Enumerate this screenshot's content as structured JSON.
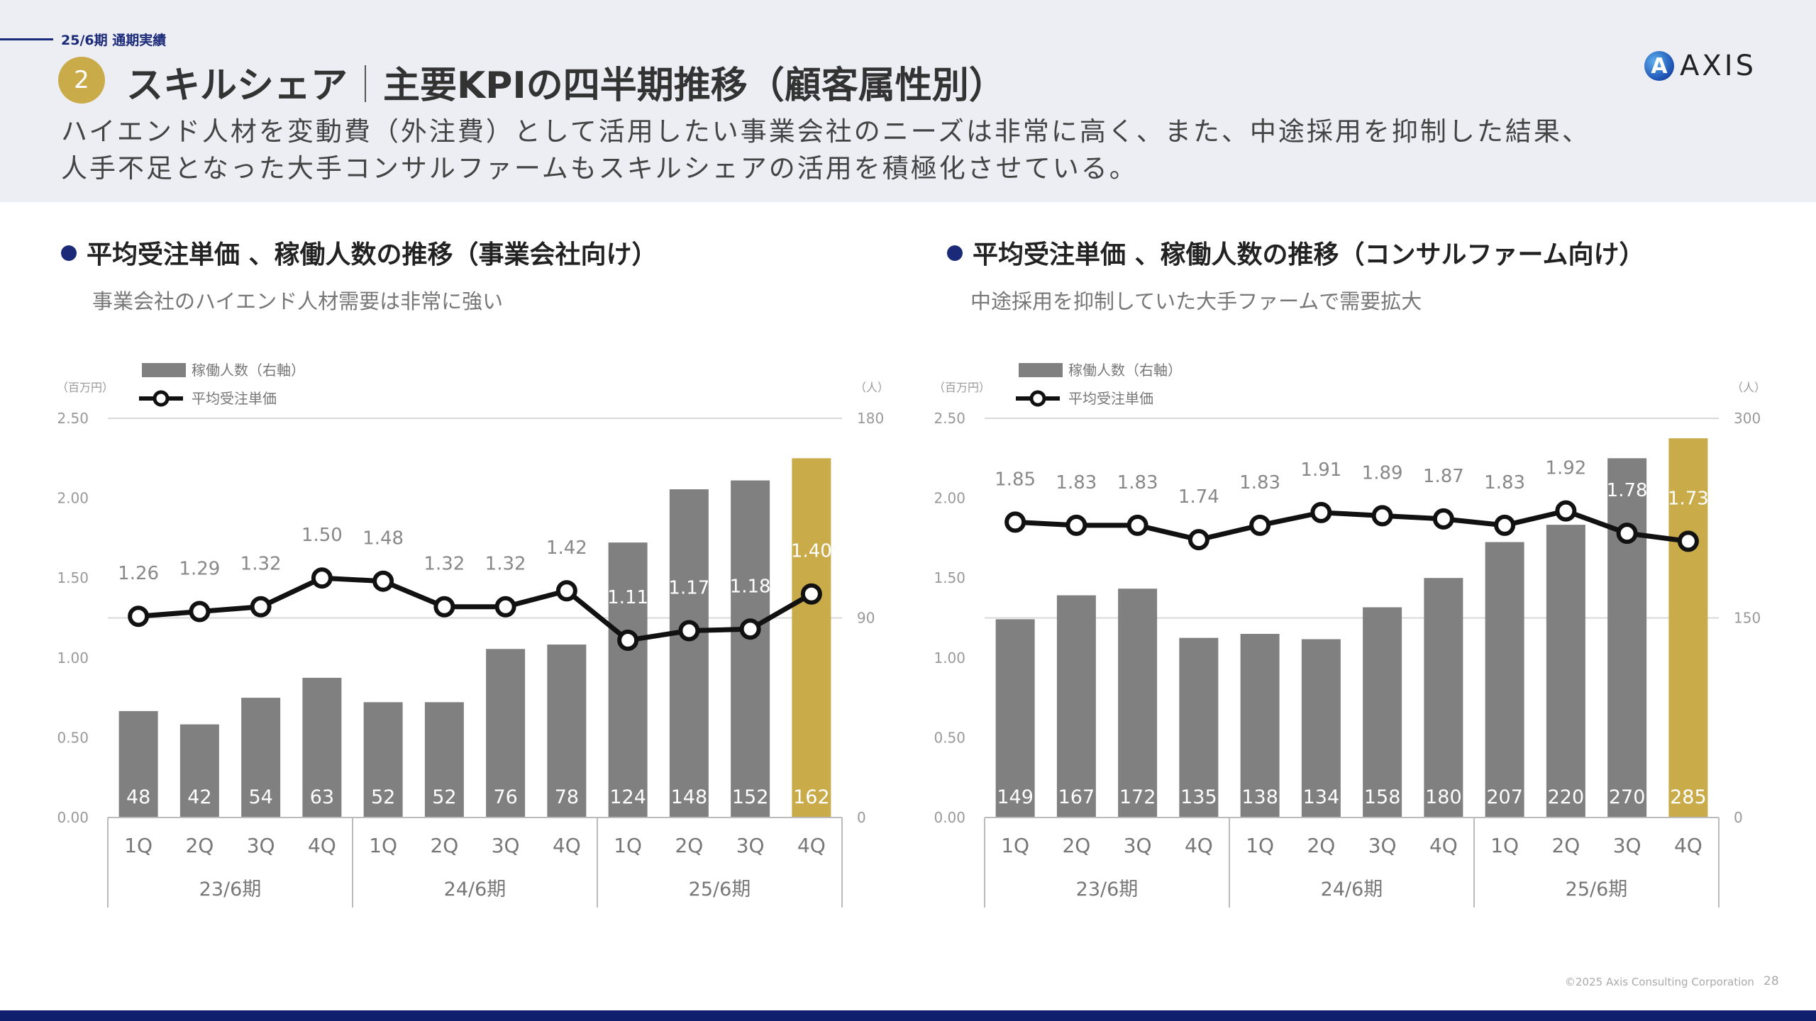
{
  "header": {
    "period_label": "25/6期 通期実績",
    "section_number": "2",
    "title_main": "スキルシェア",
    "title_sub": "主要KPIの四半期推移（顧客属性別）",
    "lead_line1": "ハイエンド人材を変動費（外注費）として活用したい事業会社のニーズは非常に高く、また、中途採用を抑制した結果、",
    "lead_line2": "人手不足となった大手コンサルファームもスキルシェアの活用を積極化させている。",
    "logo_text": "AXIS"
  },
  "sections": [
    {
      "heading": "平均受注単価 、稼働人数の推移（事業会社向け）",
      "note": "事業会社のハイエンド人材需要は非常に強い"
    },
    {
      "heading": "平均受注単価 、稼働人数の推移（コンサルファーム向け）",
      "note": "中途採用を抑制していた大手ファームで需要拡大"
    }
  ],
  "footer": {
    "copyright": "©2025 Axis Consulting Corporation",
    "page": "28"
  },
  "colors": {
    "bar": "#808080",
    "bar_highlight": "#c9ab4a",
    "line": "#111111",
    "accent": "#1b2a78"
  },
  "chart_data": [
    {
      "type": "bar+line",
      "categories": [
        "1Q",
        "2Q",
        "3Q",
        "4Q",
        "1Q",
        "2Q",
        "3Q",
        "4Q",
        "1Q",
        "2Q",
        "3Q",
        "4Q"
      ],
      "groups": [
        {
          "label": "23/6期",
          "span": 4
        },
        {
          "label": "24/6期",
          "span": 4
        },
        {
          "label": "25/6期",
          "span": 4
        }
      ],
      "left_unit": "（百万円）",
      "right_unit": "（人）",
      "left_ticks": [
        "0.00",
        "0.50",
        "1.00",
        "1.50",
        "2.00",
        "2.50"
      ],
      "right_ticks": [
        "0",
        "90",
        "180"
      ],
      "ylim_left": [
        0,
        2.5
      ],
      "ylim_right": [
        0,
        180
      ],
      "grid": true,
      "legend_position": "top-left",
      "series": [
        {
          "name": "稼働人数（右軸）",
          "type": "bar",
          "axis": "right",
          "values": [
            48,
            42,
            54,
            63,
            52,
            52,
            76,
            78,
            124,
            148,
            152,
            162
          ],
          "highlight_index": 11
        },
        {
          "name": "平均受注単価",
          "type": "line",
          "axis": "left",
          "values": [
            1.26,
            1.29,
            1.32,
            1.5,
            1.48,
            1.32,
            1.32,
            1.42,
            1.11,
            1.17,
            1.18,
            1.4
          ]
        }
      ]
    },
    {
      "type": "bar+line",
      "categories": [
        "1Q",
        "2Q",
        "3Q",
        "4Q",
        "1Q",
        "2Q",
        "3Q",
        "4Q",
        "1Q",
        "2Q",
        "3Q",
        "4Q"
      ],
      "groups": [
        {
          "label": "23/6期",
          "span": 4
        },
        {
          "label": "24/6期",
          "span": 4
        },
        {
          "label": "25/6期",
          "span": 4
        }
      ],
      "left_unit": "（百万円）",
      "right_unit": "（人）",
      "left_ticks": [
        "0.00",
        "0.50",
        "1.00",
        "1.50",
        "2.00",
        "2.50"
      ],
      "right_ticks": [
        "0",
        "150",
        "300"
      ],
      "ylim_left": [
        0,
        2.5
      ],
      "ylim_right": [
        0,
        300
      ],
      "grid": true,
      "legend_position": "top-left",
      "series": [
        {
          "name": "稼働人数（右軸）",
          "type": "bar",
          "axis": "right",
          "values": [
            149,
            167,
            172,
            135,
            138,
            134,
            158,
            180,
            207,
            220,
            270,
            285
          ],
          "highlight_index": 11
        },
        {
          "name": "平均受注単価",
          "type": "line",
          "axis": "left",
          "values": [
            1.85,
            1.83,
            1.83,
            1.74,
            1.83,
            1.91,
            1.89,
            1.87,
            1.83,
            1.92,
            1.78,
            1.73
          ]
        }
      ]
    }
  ]
}
